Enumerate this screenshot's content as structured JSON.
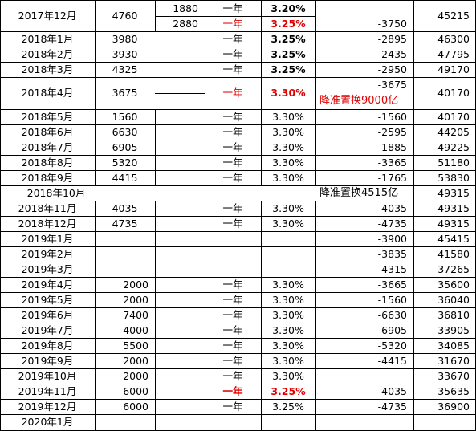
{
  "rows": [
    {
      "date": "2017年12月",
      "amount": "4760",
      "sub": [
        "1880",
        "2880"
      ],
      "term": "一年",
      "rate": [
        "3.20%",
        "3.25%"
      ],
      "diff": "-3750",
      "total": "45215"
    },
    {
      "date": "2018年1月",
      "amount": "3980",
      "term": "一年",
      "rate": "3.25%",
      "diff": "-2895",
      "total": "46300"
    },
    {
      "date": "2018年2月",
      "amount": "3930",
      "term": "一年",
      "rate": "3.25%",
      "diff": "-2435",
      "total": "47795"
    },
    {
      "date": "2018年3月",
      "amount": "4325",
      "term": "一年",
      "rate": "3.25%",
      "diff": "-2950",
      "total": "49170"
    },
    {
      "date": "2018年4月",
      "amount": "3675",
      "term": "一年",
      "rate": "3.30%",
      "diff": "-3675",
      "note": "降准置换9000亿",
      "total": "40170"
    },
    {
      "date": "2018年5月",
      "amount": "1560",
      "term": "一年",
      "rate": "3.30%",
      "diff": "-1560",
      "total": "40170"
    },
    {
      "date": "2018年6月",
      "amount": "6630",
      "term": "一年",
      "rate": "3.30%",
      "diff": "-2595",
      "total": "44205"
    },
    {
      "date": "2018年7月",
      "amount": "6905",
      "term": "一年",
      "rate": "3.30%",
      "diff": "-1885",
      "total": "49225"
    },
    {
      "date": "2018年8月",
      "amount": "5320",
      "term": "一年",
      "rate": "3.30%",
      "diff": "-3365",
      "total": "51180"
    },
    {
      "date": "2018年9月",
      "amount": "4415",
      "term": "一年",
      "rate": "3.30%",
      "diff": "-1765",
      "total": "53830"
    },
    {
      "date": "2018年10月",
      "note": "降准置换4515亿",
      "total": "49315"
    },
    {
      "date": "2018年11月",
      "amount": "4035",
      "term": "一年",
      "rate": "3.30%",
      "diff": "-4035",
      "total": "49315"
    },
    {
      "date": "2018年12月",
      "amount": "4735",
      "term": "一年",
      "rate": "3.30%",
      "diff": "-4735",
      "total": "49315"
    },
    {
      "date": "2019年1月",
      "diff": "-3900",
      "total": "45415"
    },
    {
      "date": "2019年2月",
      "diff": "-3835",
      "total": "41580"
    },
    {
      "date": "2019年3月",
      "diff": "-4315",
      "total": "37265"
    },
    {
      "date": "2019年4月",
      "amount": "2000",
      "term": "一年",
      "rate": "3.30%",
      "diff": "-3665",
      "total": "35600"
    },
    {
      "date": "2019年5月",
      "amount": "2000",
      "term": "一年",
      "rate": "3.30%",
      "diff": "-1560",
      "total": "36040"
    },
    {
      "date": "2019年6月",
      "amount": "7400",
      "term": "一年",
      "rate": "3.30%",
      "diff": "-6630",
      "total": "36810"
    },
    {
      "date": "2019年7月",
      "amount": "4000",
      "term": "一年",
      "rate": "3.30%",
      "diff": "-6905",
      "total": "33905"
    },
    {
      "date": "2019年8月",
      "amount": "5500",
      "term": "一年",
      "rate": "3.30%",
      "diff": "-5320",
      "total": "34085"
    },
    {
      "date": "2019年9月",
      "amount": "2000",
      "term": "一年",
      "rate": "3.30%",
      "diff": "-4415",
      "total": "31670"
    },
    {
      "date": "2019年10月",
      "amount": "2000",
      "term": "一年",
      "rate": "3.30%",
      "total": "33670"
    },
    {
      "date": "2019年11月",
      "amount": "6000",
      "term": "一年",
      "rate": "3.25%",
      "diff": "-4035",
      "total": "35635"
    },
    {
      "date": "2019年12月",
      "amount": "6000",
      "term": "一年",
      "rate": "3.25%",
      "diff": "-4735",
      "total": "36900"
    },
    {
      "date": "2020年1月"
    }
  ],
  "colors": {
    "highlight": "#e00000",
    "grid": "#000000"
  }
}
